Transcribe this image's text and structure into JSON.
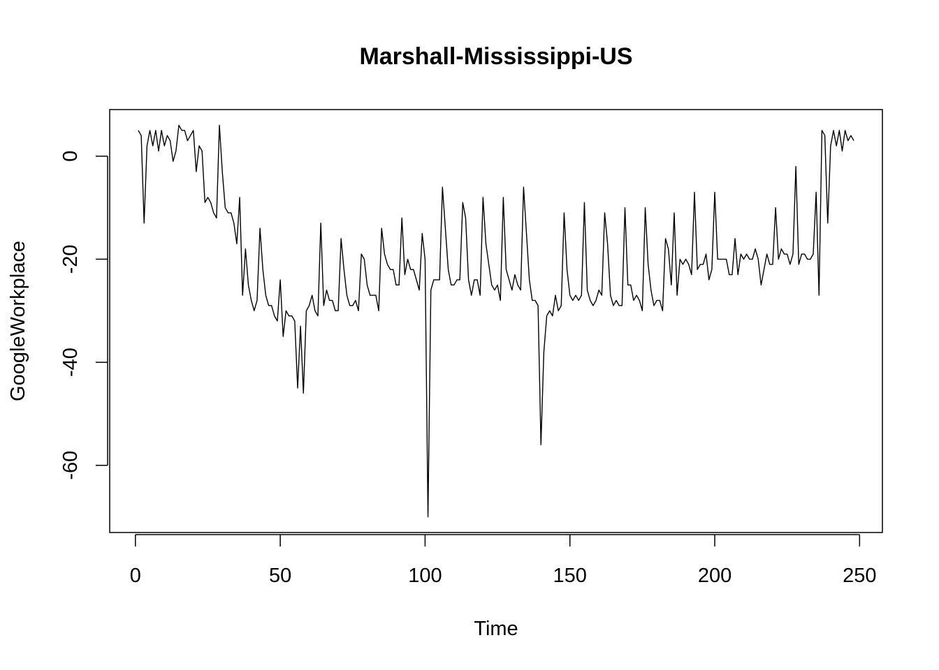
{
  "chart_data": {
    "type": "line",
    "title": "Marshall-Mississippi-US",
    "xlabel": "Time",
    "ylabel": "GoogleWorkplace",
    "xlim": [
      1,
      248
    ],
    "ylim": [
      -70,
      6
    ],
    "xticks": [
      0,
      50,
      100,
      150,
      200,
      250
    ],
    "yticks": [
      -60,
      -40,
      -20,
      0
    ],
    "grid": false,
    "legend": "none",
    "line_color": "#000000",
    "x_start": 1,
    "values": [
      5,
      4,
      -13,
      2,
      5,
      2,
      5,
      1,
      5,
      2,
      4,
      3,
      -1,
      1,
      6,
      5,
      5,
      3,
      4,
      5,
      -3,
      2,
      1,
      -9,
      -8,
      -9,
      -11,
      -12,
      6,
      -3,
      -10,
      -11,
      -11,
      -13,
      -17,
      -8,
      -27,
      -18,
      -25,
      -28,
      -30,
      -28,
      -14,
      -22,
      -27,
      -29,
      -29,
      -31,
      -32,
      -24,
      -35,
      -30,
      -31,
      -31,
      -32,
      -45,
      -33,
      -46,
      -30,
      -29,
      -27,
      -30,
      -31,
      -13,
      -29,
      -26,
      -28,
      -28,
      -30,
      -30,
      -16,
      -22,
      -27,
      -29,
      -29,
      -28,
      -30,
      -19,
      -20,
      -25,
      -27,
      -27,
      -27,
      -30,
      -14,
      -19,
      -21,
      -22,
      -22,
      -25,
      -25,
      -12,
      -23,
      -20,
      -22,
      -22,
      -24,
      -26,
      -15,
      -20,
      -70,
      -26,
      -24,
      -24,
      -24,
      -6,
      -14,
      -22,
      -25,
      -25,
      -24,
      -24,
      -9,
      -12,
      -24,
      -27,
      -24,
      -24,
      -27,
      -8,
      -17,
      -21,
      -25,
      -26,
      -25,
      -28,
      -8,
      -22,
      -24,
      -26,
      -23,
      -25,
      -26,
      -6,
      -15,
      -24,
      -28,
      -28,
      -29,
      -56,
      -38,
      -31,
      -30,
      -31,
      -27,
      -30,
      -29,
      -11,
      -22,
      -27,
      -28,
      -27,
      -28,
      -27,
      -9,
      -26,
      -28,
      -29,
      -28,
      -26,
      -27,
      -11,
      -17,
      -27,
      -29,
      -28,
      -29,
      -29,
      -10,
      -25,
      -25,
      -28,
      -27,
      -28,
      -30,
      -10,
      -21,
      -26,
      -29,
      -28,
      -28,
      -30,
      -16,
      -18,
      -25,
      -11,
      -27,
      -20,
      -21,
      -20,
      -21,
      -23,
      -7,
      -22,
      -21,
      -21,
      -19,
      -24,
      -22,
      -7,
      -20,
      -20,
      -20,
      -20,
      -23,
      -23,
      -16,
      -23,
      -19,
      -20,
      -19,
      -20,
      -20,
      -18,
      -20,
      -25,
      -22,
      -19,
      -21,
      -21,
      -10,
      -20,
      -18,
      -19,
      -19,
      -21,
      -19,
      -2,
      -21,
      -19,
      -19,
      -20,
      -20,
      -19,
      -7,
      -27,
      5,
      4,
      -13,
      2,
      5,
      2,
      5,
      1,
      5,
      3,
      4,
      3
    ]
  }
}
